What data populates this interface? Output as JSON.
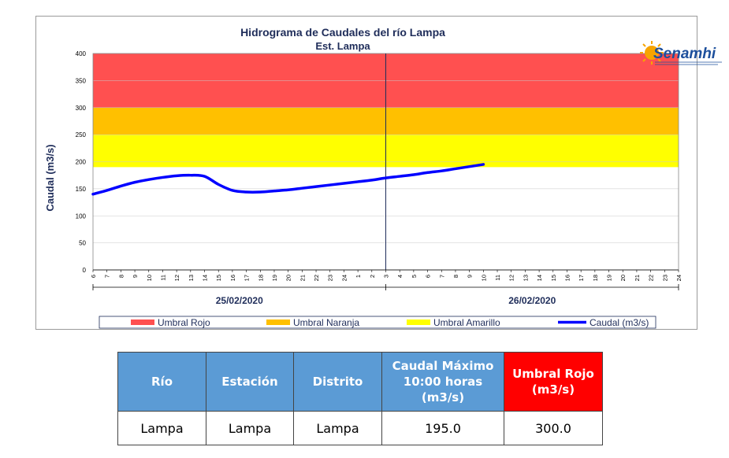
{
  "chart_data": {
    "type": "line",
    "title": "Hidrograma de Caudales del río Lampa",
    "subtitle": "Est. Lampa",
    "ylabel": "Caudal (m3/s)",
    "ylim": [
      0,
      400
    ],
    "yticks": [
      0,
      50,
      100,
      150,
      200,
      250,
      300,
      350,
      400
    ],
    "x_hour_labels": [
      "6",
      "7",
      "8",
      "9",
      "10",
      "11",
      "12",
      "13",
      "14",
      "15",
      "16",
      "17",
      "18",
      "19",
      "20",
      "21",
      "22",
      "23",
      "24",
      "1",
      "2",
      "3",
      "4",
      "5",
      "6",
      "7",
      "8",
      "9",
      "10",
      "11",
      "12",
      "13",
      "14",
      "15",
      "16",
      "17",
      "18",
      "19",
      "20",
      "21",
      "22",
      "23",
      "24"
    ],
    "dates": [
      "25/02/2020",
      "26/02/2020"
    ],
    "thresholds": [
      {
        "name": "Umbral Rojo",
        "from": 300,
        "to": 400,
        "color": "#ff5050"
      },
      {
        "name": "Umbral Naranja",
        "from": 250,
        "to": 300,
        "color": "#ffc000"
      },
      {
        "name": "Umbral Amarillo",
        "from": 190,
        "to": 250,
        "color": "#ffff00"
      }
    ],
    "series": [
      {
        "name": "Caudal (m3/s)",
        "color": "#0000ff",
        "x": [
          "25/02/2020 06:00",
          "25/02/2020 07:00",
          "25/02/2020 08:00",
          "25/02/2020 09:00",
          "25/02/2020 10:00",
          "25/02/2020 11:00",
          "25/02/2020 12:00",
          "25/02/2020 13:00",
          "25/02/2020 14:00",
          "25/02/2020 15:00",
          "25/02/2020 16:00",
          "25/02/2020 17:00",
          "25/02/2020 18:00",
          "25/02/2020 19:00",
          "25/02/2020 20:00",
          "25/02/2020 21:00",
          "25/02/2020 22:00",
          "25/02/2020 23:00",
          "26/02/2020 00:00",
          "26/02/2020 01:00",
          "26/02/2020 02:00",
          "26/02/2020 03:00",
          "26/02/2020 04:00",
          "26/02/2020 05:00",
          "26/02/2020 06:00",
          "26/02/2020 07:00",
          "26/02/2020 08:00",
          "26/02/2020 09:00",
          "26/02/2020 10:00"
        ],
        "values": [
          140,
          147,
          155,
          162,
          167,
          171,
          174,
          175,
          173,
          158,
          147,
          144,
          144,
          146,
          148,
          151,
          154,
          157,
          160,
          163,
          166,
          170,
          173,
          176,
          180,
          183,
          187,
          191,
          195
        ]
      }
    ],
    "legend_position": "bottom"
  },
  "logo": {
    "text": "Senamhi"
  },
  "table": {
    "headers": [
      "Río",
      "Estación",
      "Distrito",
      "Caudal Máximo 10:00 horas (m3/s)",
      "Umbral Rojo (m3/s)"
    ],
    "row": [
      "Lampa",
      "Lampa",
      "Lampa",
      "195.0",
      "300.0"
    ]
  }
}
